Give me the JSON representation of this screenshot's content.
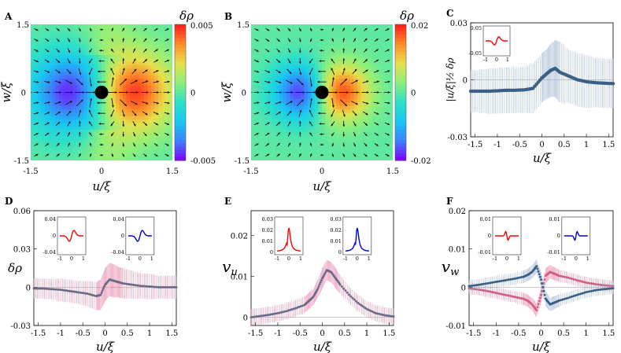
{
  "colors": {
    "cmap": [
      "#7f00ff",
      "#3b82ff",
      "#18c8f0",
      "#2fe0c8",
      "#8ef07a",
      "#e6e04a",
      "#ff8a2a",
      "#ff1a1a"
    ],
    "red_series": "#ff0000",
    "blue_series": "#0000dd",
    "pink_err": "#e26f9a",
    "blue_err": "#8fa9c8",
    "gray_pts": "#6a6a8a",
    "navy_pts": "#3b5f86"
  },
  "chart_data": [
    {
      "panel": "A",
      "type": "heatmap",
      "xlabel": "u/ξ",
      "ylabel": "w/ξ",
      "xlim": [
        -1.5,
        1.5
      ],
      "ylim": [
        -1.5,
        1.5
      ],
      "xticks": [
        "-1.5",
        "0",
        "1.5"
      ],
      "yticks": [
        "1.5",
        "0",
        "-1.5"
      ],
      "colorbar": {
        "label": "δρ",
        "max": "0.005",
        "mid": "0",
        "min": "-0.005"
      },
      "pattern": {
        "neg_center": [
          -0.6,
          0
        ],
        "pos_center": [
          0.6,
          0
        ],
        "amp": 1,
        "spread": 0.35
      },
      "vector_field": "dipole"
    },
    {
      "panel": "B",
      "type": "heatmap",
      "xlabel": "u/ξ",
      "ylabel": "w/ξ",
      "xlim": [
        -1.5,
        1.5
      ],
      "ylim": [
        -1.5,
        1.5
      ],
      "xticks": [
        "-1.5",
        "0",
        "1.5"
      ],
      "yticks": [
        "1.5",
        "0",
        "-1.5"
      ],
      "colorbar": {
        "label": "δρ",
        "max": "0.02",
        "mid": "0",
        "min": "-0.02"
      },
      "pattern": {
        "neg_center": [
          -0.4,
          0
        ],
        "pos_center": [
          0.35,
          0
        ],
        "amp": 1,
        "spread": 0.18
      },
      "vector_field": "dipole"
    },
    {
      "panel": "C",
      "type": "line",
      "xlabel": "u/ξ",
      "ylabel": "|u/ξ|^{1/2} δρ",
      "xlim": [
        -1.6,
        1.6
      ],
      "ylim": [
        -0.03,
        0.03
      ],
      "xticks": [
        "-1.5",
        "-1",
        "-0.5",
        "0",
        "0.5",
        "1",
        "1.5"
      ],
      "yticks": [
        "0.03",
        "0",
        "-0.03"
      ],
      "series": [
        {
          "x": [
            -1.6,
            -1.4,
            -1.2,
            -1.0,
            -0.8,
            -0.6,
            -0.4,
            -0.2,
            0.0,
            0.1,
            0.2,
            0.3,
            0.4,
            0.6,
            0.8,
            1.0,
            1.2,
            1.4,
            1.6
          ],
          "values": [
            -0.006,
            -0.006,
            -0.006,
            -0.0058,
            -0.0055,
            -0.0055,
            -0.0053,
            -0.0045,
            0.001,
            0.003,
            0.005,
            0.006,
            0.004,
            0.002,
            0.0,
            -0.001,
            -0.0015,
            -0.0018,
            -0.002
          ],
          "err": [
            0.011,
            0.011,
            0.012,
            0.012,
            0.012,
            0.012,
            0.012,
            0.013,
            0.013,
            0.013,
            0.014,
            0.015,
            0.016,
            0.014,
            0.014,
            0.014,
            0.013,
            0.013,
            0.013
          ]
        }
      ],
      "inset": {
        "yticks": [
          "0.05",
          "-0.05"
        ],
        "xticks": [
          "-1",
          "0",
          "1"
        ],
        "curve": "antisym"
      }
    },
    {
      "panel": "D",
      "type": "line",
      "xlabel": "u/ξ",
      "ylabel": "δρ",
      "xlim": [
        -1.6,
        1.6
      ],
      "ylim": [
        -0.03,
        0.06
      ],
      "xticks": [
        "-1.5",
        "-1",
        "-0.5",
        "0",
        "0.5",
        "1",
        "1.5"
      ],
      "yticks": [
        "0.06",
        "0.03",
        "0",
        "-0.03"
      ],
      "series": [
        {
          "x": [
            -1.6,
            -1.4,
            -1.2,
            -1.0,
            -0.8,
            -0.6,
            -0.4,
            -0.2,
            -0.1,
            0.0,
            0.1,
            0.2,
            0.3,
            0.4,
            0.6,
            0.8,
            1.0,
            1.2,
            1.4,
            1.6
          ],
          "values": [
            -0.001,
            -0.001,
            -0.0015,
            -0.002,
            -0.003,
            -0.004,
            -0.005,
            -0.007,
            -0.006,
            0.002,
            0.006,
            0.005,
            0.004,
            0.003,
            0.002,
            0.001,
            0.0005,
            0.0,
            0.0,
            0.0
          ],
          "err": [
            0.008,
            0.008,
            0.008,
            0.009,
            0.009,
            0.009,
            0.01,
            0.011,
            0.012,
            0.013,
            0.013,
            0.013,
            0.012,
            0.012,
            0.011,
            0.01,
            0.01,
            0.009,
            0.009,
            0.009
          ]
        }
      ],
      "insets": [
        {
          "yticks": [
            "0.04",
            "0",
            "-0.04"
          ],
          "xticks": [
            "-1",
            "0",
            "1"
          ],
          "curve": "antisym",
          "color": "red"
        },
        {
          "yticks": [
            "0.04",
            "0",
            "-0.04"
          ],
          "xticks": [
            "-1",
            "0",
            "1"
          ],
          "curve": "antisym",
          "color": "blue"
        }
      ]
    },
    {
      "panel": "E",
      "type": "line",
      "xlabel": "u/ξ",
      "ylabel": "v_u",
      "xlim": [
        -1.6,
        1.6
      ],
      "ylim": [
        -0.002,
        0.026
      ],
      "xticks": [
        "-1.5",
        "-1",
        "-0.5",
        "0",
        "0.5",
        "1",
        "1.5"
      ],
      "yticks": [
        "0.02",
        "0.01",
        "0"
      ],
      "series": [
        {
          "x": [
            -1.6,
            -1.4,
            -1.2,
            -1.0,
            -0.8,
            -0.6,
            -0.4,
            -0.3,
            -0.2,
            -0.1,
            0.0,
            0.1,
            0.2,
            0.3,
            0.4,
            0.6,
            0.8,
            1.0,
            1.2,
            1.4,
            1.6
          ],
          "values": [
            0.0,
            0.0003,
            0.0006,
            0.001,
            0.0015,
            0.0022,
            0.003,
            0.004,
            0.005,
            0.007,
            0.0095,
            0.0115,
            0.011,
            0.0095,
            0.008,
            0.0055,
            0.0035,
            0.002,
            0.001,
            0.0005,
            0.0002
          ],
          "err": [
            0.002,
            0.002,
            0.002,
            0.002,
            0.002,
            0.002,
            0.002,
            0.002,
            0.002,
            0.0022,
            0.0025,
            0.0025,
            0.0025,
            0.0025,
            0.0022,
            0.002,
            0.002,
            0.002,
            0.002,
            0.002,
            0.002
          ]
        }
      ],
      "insets": [
        {
          "yticks": [
            "0.03",
            "0.02",
            "0.01",
            "0"
          ],
          "xticks": [
            "-1",
            "0",
            "1"
          ],
          "curve": "peak",
          "color": "red"
        },
        {
          "yticks": [
            "0.03",
            "0.02",
            "0.01",
            "0"
          ],
          "xticks": [
            "-1",
            "0",
            "1"
          ],
          "curve": "peak",
          "color": "blue"
        }
      ]
    },
    {
      "panel": "F",
      "type": "line",
      "xlabel": "u/ξ",
      "ylabel": "v_w",
      "xlim": [
        -1.6,
        1.6
      ],
      "ylim": [
        -0.01,
        0.02
      ],
      "xticks": [
        "-1.5",
        "-1",
        "-0.5",
        "0",
        "0.5",
        "1",
        "1.5"
      ],
      "yticks": [
        "0.02",
        "0.01",
        "0",
        "-0.01"
      ],
      "series": [
        {
          "color": "pink",
          "x": [
            -1.6,
            -1.4,
            -1.2,
            -1.0,
            -0.8,
            -0.6,
            -0.4,
            -0.3,
            -0.2,
            -0.1,
            0.0,
            0.1,
            0.2,
            0.3,
            0.4,
            0.6,
            0.8,
            1.0,
            1.2,
            1.4,
            1.6
          ],
          "values": [
            -0.0003,
            -0.0006,
            -0.001,
            -0.0015,
            -0.002,
            -0.0025,
            -0.003,
            -0.0035,
            -0.0045,
            -0.006,
            -0.002,
            0.003,
            0.004,
            0.0035,
            0.003,
            0.0025,
            0.0018,
            0.0012,
            0.0008,
            0.0005,
            0.0003
          ],
          "err": [
            0.0015,
            0.0015,
            0.0015,
            0.0015,
            0.0015,
            0.0015,
            0.0016,
            0.0016,
            0.0017,
            0.0018,
            0.002,
            0.002,
            0.0018,
            0.0017,
            0.0016,
            0.0015,
            0.0015,
            0.0015,
            0.0015,
            0.0015,
            0.0015
          ]
        },
        {
          "color": "navy",
          "x": [
            -1.6,
            -1.4,
            -1.2,
            -1.0,
            -0.8,
            -0.6,
            -0.4,
            -0.3,
            -0.2,
            -0.1,
            0.0,
            0.1,
            0.2,
            0.3,
            0.4,
            0.6,
            0.8,
            1.0,
            1.2,
            1.4,
            1.6
          ],
          "values": [
            0.0003,
            0.0006,
            0.001,
            0.0014,
            0.0018,
            0.0022,
            0.0027,
            0.0032,
            0.004,
            0.0055,
            0.002,
            -0.003,
            -0.0045,
            -0.004,
            -0.0035,
            -0.0028,
            -0.002,
            -0.0013,
            -0.0008,
            -0.0005,
            -0.0003
          ],
          "err": [
            0.0015,
            0.0015,
            0.0015,
            0.0015,
            0.0015,
            0.0015,
            0.0016,
            0.0016,
            0.0017,
            0.0018,
            0.002,
            0.002,
            0.0018,
            0.0017,
            0.0016,
            0.0015,
            0.0015,
            0.0015,
            0.0015,
            0.0015,
            0.0015
          ]
        }
      ],
      "insets": [
        {
          "yticks": [
            "0.01",
            "0",
            "-0.01"
          ],
          "xticks": [
            "-1",
            "0",
            "1"
          ],
          "curve": "antisym_sharp",
          "color": "red"
        },
        {
          "yticks": [
            "0.01",
            "0",
            "-0.01"
          ],
          "xticks": [
            "-1",
            "0",
            "1"
          ],
          "curve": "antisym_sharp_inv",
          "color": "blue"
        }
      ]
    }
  ]
}
